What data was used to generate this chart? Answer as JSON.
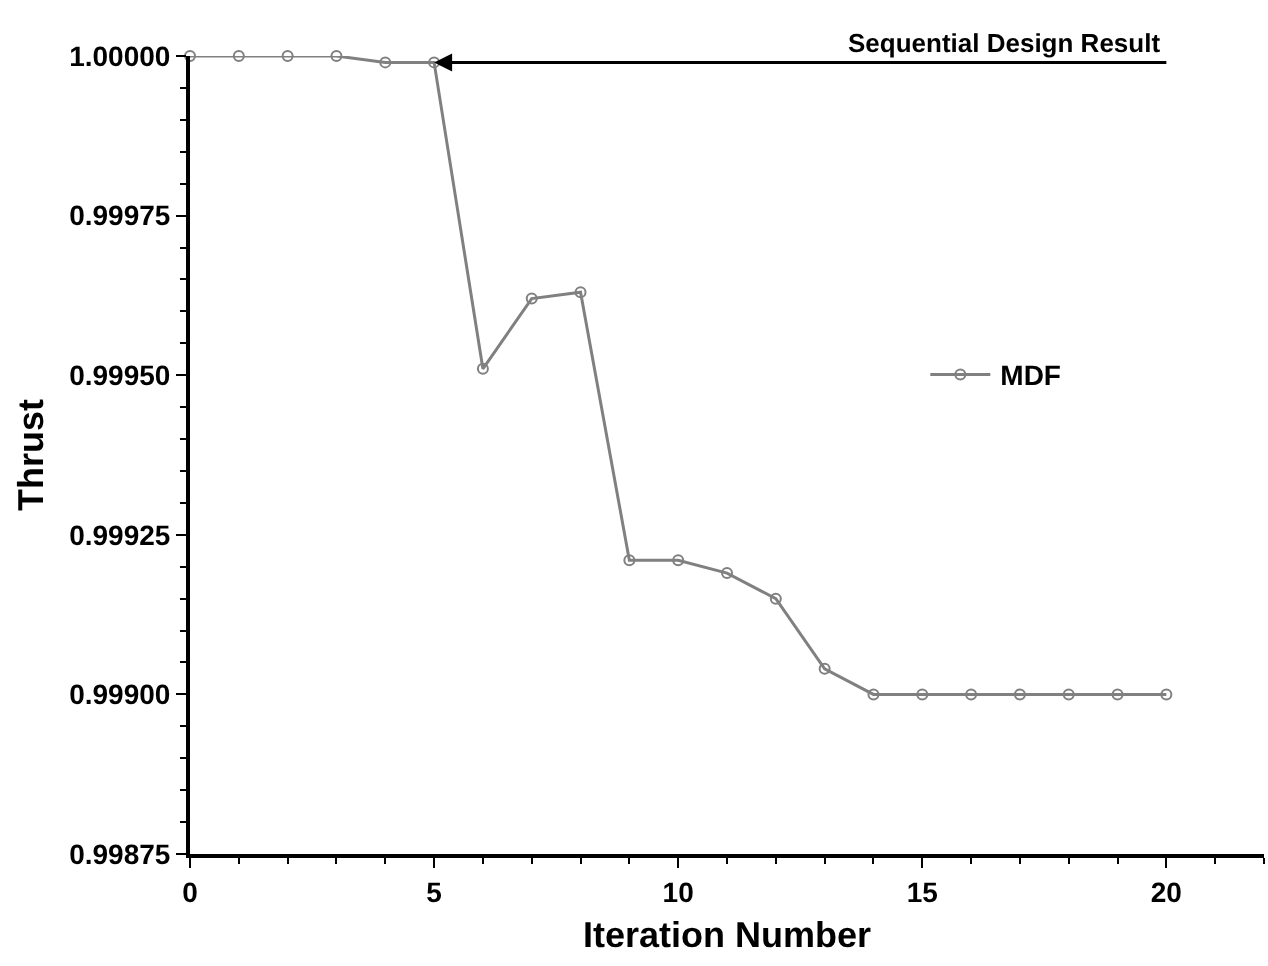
{
  "chart_data": {
    "type": "line",
    "xlabel": "Iteration Number",
    "ylabel": "Thrust",
    "x": [
      0,
      1,
      2,
      3,
      4,
      5,
      6,
      7,
      8,
      9,
      10,
      11,
      12,
      13,
      14,
      15,
      16,
      17,
      18,
      19,
      20
    ],
    "series": [
      {
        "name": "MDF",
        "color": "#808080",
        "values": [
          1.0,
          1.0,
          1.0,
          1.0,
          0.99999,
          0.99999,
          0.99951,
          0.99962,
          0.99963,
          0.99921,
          0.99921,
          0.99919,
          0.99915,
          0.99904,
          0.999,
          0.999,
          0.999,
          0.999,
          0.999,
          0.999,
          0.999
        ]
      }
    ],
    "xlim": [
      0,
      22
    ],
    "xticks": [
      0,
      5,
      10,
      15,
      20
    ],
    "ylim": [
      0.99875,
      1.0
    ],
    "yticks": [
      {
        "value": 0.99875,
        "label": "0.99875"
      },
      {
        "value": 0.999,
        "label": "0.99900"
      },
      {
        "value": 0.99925,
        "label": "0.99925"
      },
      {
        "value": 0.9995,
        "label": "0.99950"
      },
      {
        "value": 0.99975,
        "label": "0.99975"
      },
      {
        "value": 1.0,
        "label": "1.00000"
      }
    ],
    "annotations": [
      {
        "text": "Sequential Design Result",
        "x": 5,
        "y": 0.99999
      }
    ],
    "legend": "right",
    "marker": "circle",
    "line_style": "solid"
  }
}
